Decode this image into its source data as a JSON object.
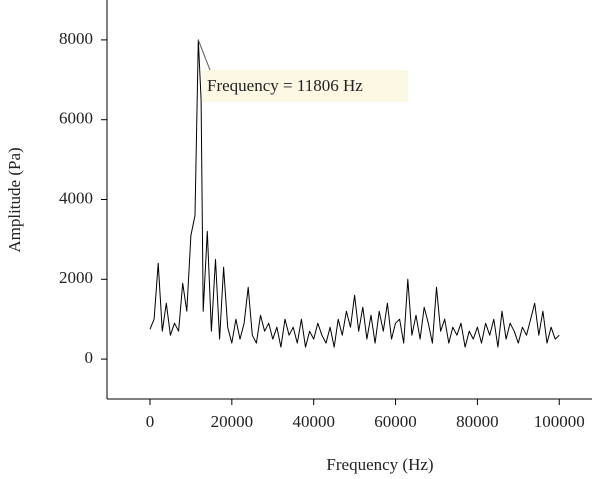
{
  "chart_data": {
    "type": "line",
    "xlabel": "Frequency (Hz)",
    "ylabel": "Amplitude (Pa)",
    "annotation": "Frequency = 11806 Hz",
    "xlim": [
      -10500,
      108000
    ],
    "ylim": [
      -1000,
      9000
    ],
    "xticks": [
      0,
      20000,
      40000,
      60000,
      80000,
      100000
    ],
    "yticks": [
      0,
      2000,
      4000,
      6000,
      8000
    ],
    "series": [
      {
        "color": "#000000",
        "x": [
          0,
          1000,
          2000,
          3000,
          4000,
          5000,
          6000,
          7000,
          8000,
          9000,
          10000,
          11000,
          11806,
          12500,
          13000,
          14000,
          15000,
          16000,
          17000,
          18000,
          19000,
          20000,
          21000,
          22000,
          23000,
          24000,
          25000,
          26000,
          27000,
          28000,
          29000,
          30000,
          31000,
          32000,
          33000,
          34000,
          35000,
          36000,
          37000,
          38000,
          39000,
          40000,
          41000,
          42000,
          43000,
          44000,
          45000,
          46000,
          47000,
          48000,
          49000,
          50000,
          51000,
          52000,
          53000,
          54000,
          55000,
          56000,
          57000,
          58000,
          59000,
          60000,
          61000,
          62000,
          63000,
          64000,
          65000,
          66000,
          67000,
          68000,
          69000,
          70000,
          71000,
          72000,
          73000,
          74000,
          75000,
          76000,
          77000,
          78000,
          79000,
          80000,
          81000,
          82000,
          83000,
          84000,
          85000,
          86000,
          87000,
          88000,
          89000,
          90000,
          91000,
          92000,
          93000,
          94000,
          95000,
          96000,
          97000,
          98000,
          99000,
          100000
        ],
        "values": [
          750,
          1000,
          2400,
          700,
          1400,
          600,
          900,
          700,
          1900,
          1200,
          3100,
          3600,
          8000,
          6500,
          1200,
          3200,
          700,
          2500,
          500,
          2300,
          800,
          400,
          1000,
          500,
          900,
          1800,
          600,
          400,
          1100,
          700,
          900,
          500,
          800,
          300,
          1000,
          600,
          800,
          400,
          1000,
          300,
          700,
          500,
          900,
          600,
          400,
          800,
          300,
          1000,
          600,
          1200,
          800,
          1600,
          700,
          1300,
          500,
          1100,
          400,
          1200,
          700,
          1400,
          500,
          900,
          1000,
          400,
          2000,
          600,
          1100,
          500,
          1300,
          900,
          400,
          1800,
          700,
          1000,
          400,
          800,
          600,
          900,
          300,
          700,
          500,
          800,
          400,
          900,
          600,
          1000,
          300,
          1200,
          500,
          900,
          700,
          400,
          800,
          600,
          1000,
          1400,
          600,
          1200,
          400,
          800,
          500,
          600
        ]
      }
    ]
  }
}
